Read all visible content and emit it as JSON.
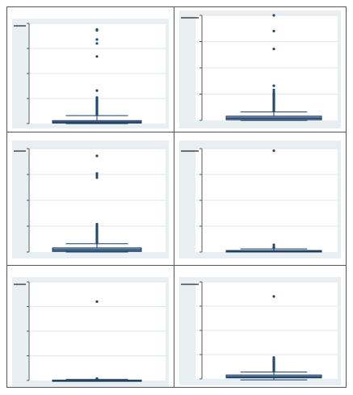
{
  "chart_data": [
    {
      "type": "box",
      "title": "",
      "xlabel": "",
      "ylabel": "",
      "ylim": [
        0,
        100
      ],
      "grid": true,
      "legend": "none",
      "box": {
        "q1": 0.5,
        "median": 1.5,
        "q3": 3,
        "whisker_low": 0,
        "whisker_high": 8
      },
      "outliers": [
        9,
        10,
        11,
        12,
        13,
        14,
        15,
        16,
        17,
        18,
        19,
        20,
        21,
        22,
        23,
        24,
        25,
        26,
        33,
        67,
        80,
        84,
        93,
        94
      ]
    },
    {
      "type": "box",
      "title": "",
      "xlabel": "",
      "ylabel": "",
      "ylim": [
        0,
        100
      ],
      "grid": true,
      "legend": "none",
      "box": {
        "q1": 0.5,
        "median": 2,
        "q3": 4,
        "whisker_low": 0,
        "whisker_high": 8
      },
      "outliers": [
        9,
        10,
        11,
        12,
        13,
        14,
        15,
        16,
        17,
        18,
        19,
        20,
        21,
        22,
        23,
        24,
        25,
        26,
        27,
        29,
        33,
        68,
        85,
        100
      ]
    },
    {
      "type": "box",
      "title": "",
      "xlabel": "",
      "ylabel": "",
      "ylim": [
        0,
        100
      ],
      "grid": true,
      "legend": "none",
      "box": {
        "q1": 0.5,
        "median": 2,
        "q3": 4,
        "whisker_low": 0,
        "whisker_high": 8
      },
      "outliers": [
        9,
        10,
        11,
        12,
        13,
        14,
        15,
        16,
        17,
        18,
        19,
        20,
        21,
        22,
        23,
        24,
        25,
        26,
        27,
        72,
        74,
        76,
        93
      ]
    },
    {
      "type": "box",
      "title": "",
      "xlabel": "",
      "ylabel": "",
      "ylim": [
        0,
        100
      ],
      "grid": true,
      "legend": "none",
      "box": {
        "q1": 0,
        "median": 0.5,
        "q3": 1.5,
        "whisker_low": 0,
        "whisker_high": 3
      },
      "outliers": [
        4,
        5,
        7,
        98
      ]
    },
    {
      "type": "box",
      "title": "",
      "xlabel": "",
      "ylabel": "",
      "ylim": [
        0,
        100
      ],
      "grid": true,
      "legend": "none",
      "box": {
        "q1": 0,
        "median": 0,
        "q3": 0.3,
        "whisker_low": 0,
        "whisker_high": 1
      },
      "outliers": [
        1.5,
        2,
        80
      ]
    },
    {
      "type": "box",
      "title": "",
      "xlabel": "",
      "ylabel": "",
      "ylim": [
        0,
        100
      ],
      "grid": true,
      "legend": "none",
      "box": {
        "q1": 1,
        "median": 2,
        "q3": 4,
        "whisker_low": -1,
        "whisker_high": 7
      },
      "outliers": [
        8,
        9,
        10,
        11,
        12,
        13,
        14,
        15,
        16,
        17,
        18,
        19,
        20,
        22,
        85
      ]
    }
  ],
  "colors": {
    "outer_bg": "#e8eff2",
    "plot_bg": "#ffffff",
    "gridline": "#e3e6ea",
    "axis": "#555555",
    "box_fill": "#7f9ec7",
    "box_edge": "#1c3a5c",
    "whisker": "#1c3a5c",
    "outlier": "#1f4a6e",
    "border": "#555555"
  }
}
